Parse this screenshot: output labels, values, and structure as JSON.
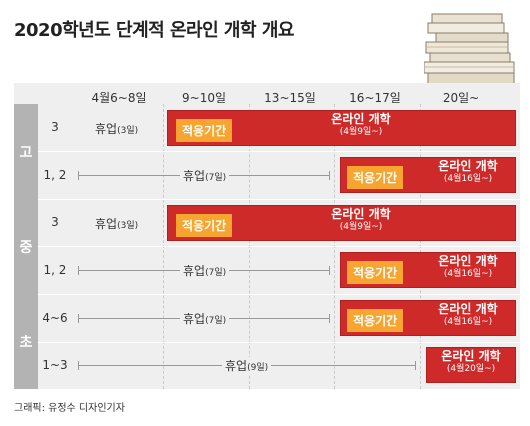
{
  "title": "2020학년도 단계적 온라인 개학 개요",
  "columns": [
    "4월6~8일",
    "9~10일",
    "13~15일",
    "16~17일",
    "20일~"
  ],
  "levels": {
    "high": "고",
    "middle": "중",
    "elementary": "초"
  },
  "grades": {
    "high3": "3",
    "high12": "1, 2",
    "mid3": "3",
    "mid12": "1, 2",
    "elem46": "4~6",
    "elem13": "1~3"
  },
  "labels": {
    "break": "휴업",
    "days3": "(3일)",
    "days7": "(7일)",
    "days9": "(9일)",
    "adapt": "적응기간",
    "online": "온라인 개학",
    "apr9": "(4월9일~)",
    "apr16": "(4월16일~)",
    "apr20": "(4월20일~)"
  },
  "credit": "그래픽: 유정수 디자인기자",
  "colors": {
    "bar": "#cf2a2a",
    "badge": "#f7a531",
    "board": "#efefef",
    "level": "#b3b3b3"
  },
  "icons": {
    "books": "books-stack-icon"
  }
}
